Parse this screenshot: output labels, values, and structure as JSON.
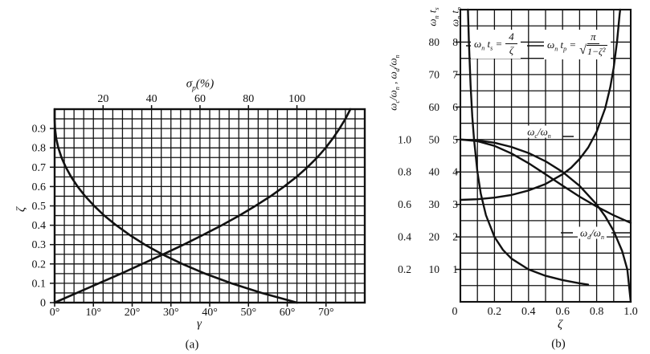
{
  "figure": {
    "captions": {
      "a": "(a)",
      "b": "(b)"
    }
  },
  "chart_data": [
    {
      "id": "a",
      "type": "line",
      "title": "",
      "xlabel_bottom": "γ",
      "xlabel_top": "σ_p(%)",
      "ylabel": "ζ",
      "axes": {
        "bottom": {
          "min": 0,
          "max": 80,
          "ticks": [
            0,
            10,
            20,
            30,
            40,
            50,
            60,
            70
          ],
          "suffix": "°",
          "grid_step": 2.5
        },
        "top": {
          "min": 0,
          "max": 128,
          "ticks": [
            20,
            40,
            60,
            80,
            100
          ]
        },
        "left": {
          "min": 0,
          "max": 1.0,
          "tick_labels": [
            "0",
            "0.1",
            "0.2",
            "0.3",
            "0.4",
            "0.5",
            "0.6",
            "0.7",
            "0.8",
            "0.9"
          ],
          "tick_step": 0.1,
          "grid_step": 0.05
        }
      },
      "grid": true,
      "series": [
        {
          "name": "overshoot-sigma-p-vs-zeta",
          "x_axis": "top",
          "points": [
            [
              0,
              1.0
            ],
            [
              0.01,
              0.95
            ],
            [
              0.15,
              0.9
            ],
            [
              0.63,
              0.85
            ],
            [
              1.52,
              0.8
            ],
            [
              2.84,
              0.75
            ],
            [
              4.6,
              0.7
            ],
            [
              6.8,
              0.65
            ],
            [
              9.5,
              0.6
            ],
            [
              12.6,
              0.55
            ],
            [
              16.3,
              0.5
            ],
            [
              20.5,
              0.45
            ],
            [
              25.4,
              0.4
            ],
            [
              30.9,
              0.35
            ],
            [
              37.2,
              0.3
            ],
            [
              44.4,
              0.25
            ],
            [
              52.7,
              0.2
            ],
            [
              62.1,
              0.15
            ],
            [
              72.9,
              0.1
            ],
            [
              85.4,
              0.05
            ],
            [
              100,
              0
            ]
          ]
        },
        {
          "name": "phase-margin-gamma-vs-zeta",
          "x_axis": "bottom",
          "points": [
            [
              0,
              0
            ],
            [
              5.7,
              0.05
            ],
            [
              11.4,
              0.1
            ],
            [
              17.1,
              0.15
            ],
            [
              22.6,
              0.2
            ],
            [
              28.0,
              0.25
            ],
            [
              33.3,
              0.3
            ],
            [
              38.3,
              0.35
            ],
            [
              43.1,
              0.4
            ],
            [
              47.6,
              0.45
            ],
            [
              51.8,
              0.5
            ],
            [
              55.7,
              0.55
            ],
            [
              59.2,
              0.6
            ],
            [
              62.4,
              0.65
            ],
            [
              65.2,
              0.7
            ],
            [
              67.7,
              0.75
            ],
            [
              69.9,
              0.8
            ],
            [
              71.8,
              0.85
            ],
            [
              73.5,
              0.9
            ],
            [
              75.0,
              0.95
            ],
            [
              76.3,
              1.0
            ]
          ]
        }
      ]
    },
    {
      "id": "b",
      "type": "line",
      "title": "",
      "xlabel": "ζ",
      "ylabel_left": "ω_c/ω_n , ω_d/ω_n",
      "col_header_ts": "ω_n t_s",
      "col_header_tp": "ω_n t_p",
      "axes": {
        "bottom": {
          "min": 0,
          "max": 1.0,
          "tick_labels": [
            "0",
            "0.2",
            "0.4",
            "0.6",
            "0.8",
            "1.0"
          ],
          "tick_step": 0.2,
          "grid_step": 0.1
        },
        "left_omega": {
          "tick_labels": [
            "0.2",
            "0.4",
            "0.6",
            "0.8",
            "1.0"
          ]
        },
        "left_ts": {
          "tick_labels": [
            "10",
            "20",
            "30",
            "40",
            "50",
            "60",
            "70",
            "80"
          ]
        },
        "left_tp": {
          "tick_labels": [
            "1",
            "2",
            "3",
            "4",
            "5",
            "6",
            "7",
            "8"
          ]
        },
        "u_max": 9
      },
      "grid": true,
      "labels": {
        "curve_c": "ω_c/ω_n",
        "curve_d": "ω_d/ω_n",
        "eq_ts": {
          "lhs": "ω_n t_s =",
          "num": "4",
          "den": "ζ"
        },
        "eq_tp": {
          "lhs": "ω_n t_p =",
          "num": "π",
          "rad": "1−ζ²"
        }
      },
      "series": [
        {
          "name": "omega-c-over-omega-n",
          "scale": "omega",
          "points": [
            [
              0,
              1.0
            ],
            [
              0.1,
              0.99
            ],
            [
              0.2,
              0.961
            ],
            [
              0.3,
              0.914
            ],
            [
              0.4,
              0.854
            ],
            [
              0.5,
              0.786
            ],
            [
              0.6,
              0.716
            ],
            [
              0.7,
              0.648
            ],
            [
              0.8,
              0.587
            ],
            [
              0.9,
              0.533
            ],
            [
              1.0,
              0.486
            ]
          ]
        },
        {
          "name": "omega-d-over-omega-n",
          "scale": "omega",
          "points": [
            [
              0,
              1.0
            ],
            [
              0.1,
              0.995
            ],
            [
              0.2,
              0.98
            ],
            [
              0.3,
              0.954
            ],
            [
              0.4,
              0.917
            ],
            [
              0.5,
              0.866
            ],
            [
              0.6,
              0.8
            ],
            [
              0.7,
              0.714
            ],
            [
              0.8,
              0.6
            ],
            [
              0.85,
              0.527
            ],
            [
              0.9,
              0.436
            ],
            [
              0.95,
              0.312
            ],
            [
              0.98,
              0.199
            ],
            [
              1.0,
              0
            ]
          ]
        },
        {
          "name": "settling-time-wn-ts",
          "scale": "ts",
          "points": [
            [
              0.0445,
              90
            ],
            [
              0.05,
              80
            ],
            [
              0.06,
              66.7
            ],
            [
              0.07,
              57.1
            ],
            [
              0.08,
              50
            ],
            [
              0.1,
              40
            ],
            [
              0.12,
              33.3
            ],
            [
              0.15,
              26.7
            ],
            [
              0.2,
              20
            ],
            [
              0.25,
              16
            ],
            [
              0.3,
              13.3
            ],
            [
              0.4,
              10
            ],
            [
              0.5,
              8
            ],
            [
              0.6,
              6.7
            ],
            [
              0.7,
              5.7
            ],
            [
              0.75,
              5.3
            ]
          ]
        },
        {
          "name": "peak-time-wn-tp",
          "scale": "tp",
          "points": [
            [
              0,
              3.14
            ],
            [
              0.1,
              3.16
            ],
            [
              0.2,
              3.21
            ],
            [
              0.3,
              3.29
            ],
            [
              0.4,
              3.43
            ],
            [
              0.5,
              3.63
            ],
            [
              0.6,
              3.93
            ],
            [
              0.65,
              4.13
            ],
            [
              0.7,
              4.4
            ],
            [
              0.75,
              4.75
            ],
            [
              0.8,
              5.24
            ],
            [
              0.85,
              5.96
            ],
            [
              0.88,
              6.62
            ],
            [
              0.9,
              7.21
            ],
            [
              0.92,
              8.02
            ],
            [
              0.935,
              8.86
            ],
            [
              0.938,
              9.0
            ]
          ]
        }
      ]
    }
  ]
}
